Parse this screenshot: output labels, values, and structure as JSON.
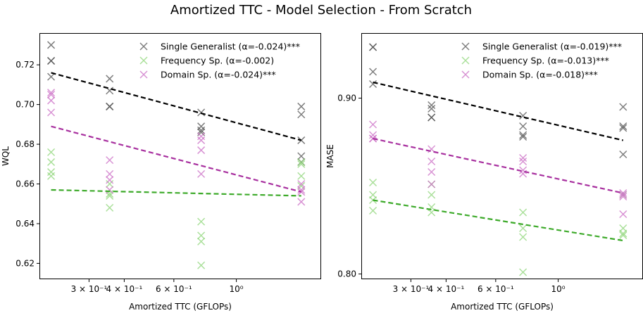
{
  "title": "Amortized TTC - Model Selection - From Scratch",
  "colors": {
    "single": "#555555",
    "frequency": "#8fd67a",
    "domain": "#cc6fc6",
    "fit_single": "#000000",
    "fit_frequency": "#3daa2a",
    "fit_domain": "#a8309f"
  },
  "chart_data": [
    {
      "type": "scatter",
      "xscale": "log",
      "xlim": [
        0.2,
        2.0
      ],
      "ylim": [
        0.612,
        0.736
      ],
      "xlabel": "Amortized TTC (GFLOPs)",
      "ylabel": "WQL",
      "xticks": [
        {
          "value": 0.3,
          "label": "3 × 10⁻¹"
        },
        {
          "value": 0.4,
          "label": "4 × 10⁻¹"
        },
        {
          "value": 0.6,
          "label": "6 × 10⁻¹"
        },
        {
          "value": 1.0,
          "label": "10⁰"
        }
      ],
      "yticks": [
        {
          "value": 0.62,
          "label": "0.62"
        },
        {
          "value": 0.64,
          "label": "0.64"
        },
        {
          "value": 0.66,
          "label": "0.66"
        },
        {
          "value": 0.68,
          "label": "0.68"
        },
        {
          "value": 0.7,
          "label": "0.70"
        },
        {
          "value": 0.72,
          "label": "0.72"
        }
      ],
      "legend_position": "top-right",
      "series": [
        {
          "key": "single",
          "name": "Single Generalist (α=-0.024)***",
          "points": [
            [
              0.22,
              0.73
            ],
            [
              0.22,
              0.722
            ],
            [
              0.22,
              0.722
            ],
            [
              0.22,
              0.714
            ],
            [
              0.355,
              0.713
            ],
            [
              0.355,
              0.707
            ],
            [
              0.355,
              0.699
            ],
            [
              0.355,
              0.699
            ],
            [
              0.75,
              0.696
            ],
            [
              0.75,
              0.689
            ],
            [
              0.75,
              0.687
            ],
            [
              0.75,
              0.686
            ],
            [
              1.7,
              0.699
            ],
            [
              1.7,
              0.695
            ],
            [
              1.7,
              0.682
            ],
            [
              1.7,
              0.674
            ],
            [
              1.7,
              0.671
            ]
          ],
          "fit": [
            [
              0.22,
              0.716
            ],
            [
              1.7,
              0.682
            ]
          ]
        },
        {
          "key": "frequency",
          "name": "Frequency Sp. (α=-0.002)",
          "points": [
            [
              0.22,
              0.676
            ],
            [
              0.22,
              0.671
            ],
            [
              0.22,
              0.666
            ],
            [
              0.22,
              0.664
            ],
            [
              0.355,
              0.66
            ],
            [
              0.355,
              0.655
            ],
            [
              0.355,
              0.654
            ],
            [
              0.355,
              0.648
            ],
            [
              0.75,
              0.641
            ],
            [
              0.75,
              0.634
            ],
            [
              0.75,
              0.631
            ],
            [
              0.75,
              0.619
            ],
            [
              1.7,
              0.671
            ],
            [
              1.7,
              0.67
            ],
            [
              1.7,
              0.664
            ],
            [
              1.7,
              0.659
            ]
          ],
          "fit": [
            [
              0.22,
              0.657
            ],
            [
              1.7,
              0.654
            ]
          ]
        },
        {
          "key": "domain",
          "name": "Domain Sp. (α=-0.024)***",
          "points": [
            [
              0.22,
              0.706
            ],
            [
              0.22,
              0.705
            ],
            [
              0.22,
              0.702
            ],
            [
              0.22,
              0.696
            ],
            [
              0.355,
              0.672
            ],
            [
              0.355,
              0.665
            ],
            [
              0.355,
              0.662
            ],
            [
              0.355,
              0.657
            ],
            [
              0.75,
              0.684
            ],
            [
              0.75,
              0.682
            ],
            [
              0.75,
              0.677
            ],
            [
              0.75,
              0.665
            ],
            [
              1.7,
              0.66
            ],
            [
              1.7,
              0.657
            ],
            [
              1.7,
              0.656
            ],
            [
              1.7,
              0.651
            ]
          ],
          "fit": [
            [
              0.22,
              0.689
            ],
            [
              1.7,
              0.656
            ]
          ]
        }
      ]
    },
    {
      "type": "scatter",
      "xscale": "log",
      "xlim": [
        0.2,
        2.0
      ],
      "ylim": [
        0.797,
        0.937
      ],
      "xlabel": "Amortized TTC (GFLOPs)",
      "ylabel": "MASE",
      "xticks": [
        {
          "value": 0.3,
          "label": "3 × 10⁻¹"
        },
        {
          "value": 0.4,
          "label": "4 × 10⁻¹"
        },
        {
          "value": 0.6,
          "label": "6 × 10⁻¹"
        },
        {
          "value": 1.0,
          "label": "10⁰"
        }
      ],
      "yticks": [
        {
          "value": 0.8,
          "label": "0.80"
        },
        {
          "value": 0.9,
          "label": "0.90"
        }
      ],
      "legend_position": "top-right",
      "series": [
        {
          "key": "single",
          "name": "Single Generalist (α=-0.019)***",
          "points": [
            [
              0.22,
              0.929
            ],
            [
              0.22,
              0.929
            ],
            [
              0.22,
              0.915
            ],
            [
              0.22,
              0.908
            ],
            [
              0.355,
              0.896
            ],
            [
              0.355,
              0.894
            ],
            [
              0.355,
              0.889
            ],
            [
              0.355,
              0.889
            ],
            [
              0.75,
              0.89
            ],
            [
              0.75,
              0.884
            ],
            [
              0.75,
              0.879
            ],
            [
              0.75,
              0.878
            ],
            [
              1.7,
              0.895
            ],
            [
              1.7,
              0.884
            ],
            [
              1.7,
              0.883
            ],
            [
              1.7,
              0.868
            ]
          ],
          "fit": [
            [
              0.22,
              0.909
            ],
            [
              1.7,
              0.876
            ]
          ]
        },
        {
          "key": "frequency",
          "name": "Frequency Sp. (α=-0.013)***",
          "points": [
            [
              0.22,
              0.852
            ],
            [
              0.22,
              0.845
            ],
            [
              0.22,
              0.842
            ],
            [
              0.22,
              0.836
            ],
            [
              0.355,
              0.851
            ],
            [
              0.355,
              0.845
            ],
            [
              0.355,
              0.838
            ],
            [
              0.355,
              0.835
            ],
            [
              0.75,
              0.835
            ],
            [
              0.75,
              0.826
            ],
            [
              0.75,
              0.821
            ],
            [
              0.75,
              0.801
            ],
            [
              1.7,
              0.845
            ],
            [
              1.7,
              0.826
            ],
            [
              1.7,
              0.823
            ],
            [
              1.7,
              0.822
            ]
          ],
          "fit": [
            [
              0.22,
              0.842
            ],
            [
              1.7,
              0.819
            ]
          ]
        },
        {
          "key": "domain",
          "name": "Domain Sp. (α=-0.018)***",
          "points": [
            [
              0.22,
              0.885
            ],
            [
              0.22,
              0.879
            ],
            [
              0.22,
              0.877
            ],
            [
              0.22,
              0.877
            ],
            [
              0.355,
              0.871
            ],
            [
              0.355,
              0.864
            ],
            [
              0.355,
              0.858
            ],
            [
              0.355,
              0.851
            ],
            [
              0.75,
              0.866
            ],
            [
              0.75,
              0.864
            ],
            [
              0.75,
              0.859
            ],
            [
              0.75,
              0.857
            ],
            [
              1.7,
              0.846
            ],
            [
              1.7,
              0.845
            ],
            [
              1.7,
              0.844
            ],
            [
              1.7,
              0.834
            ]
          ],
          "fit": [
            [
              0.22,
              0.877
            ],
            [
              1.7,
              0.846
            ]
          ]
        }
      ]
    }
  ]
}
